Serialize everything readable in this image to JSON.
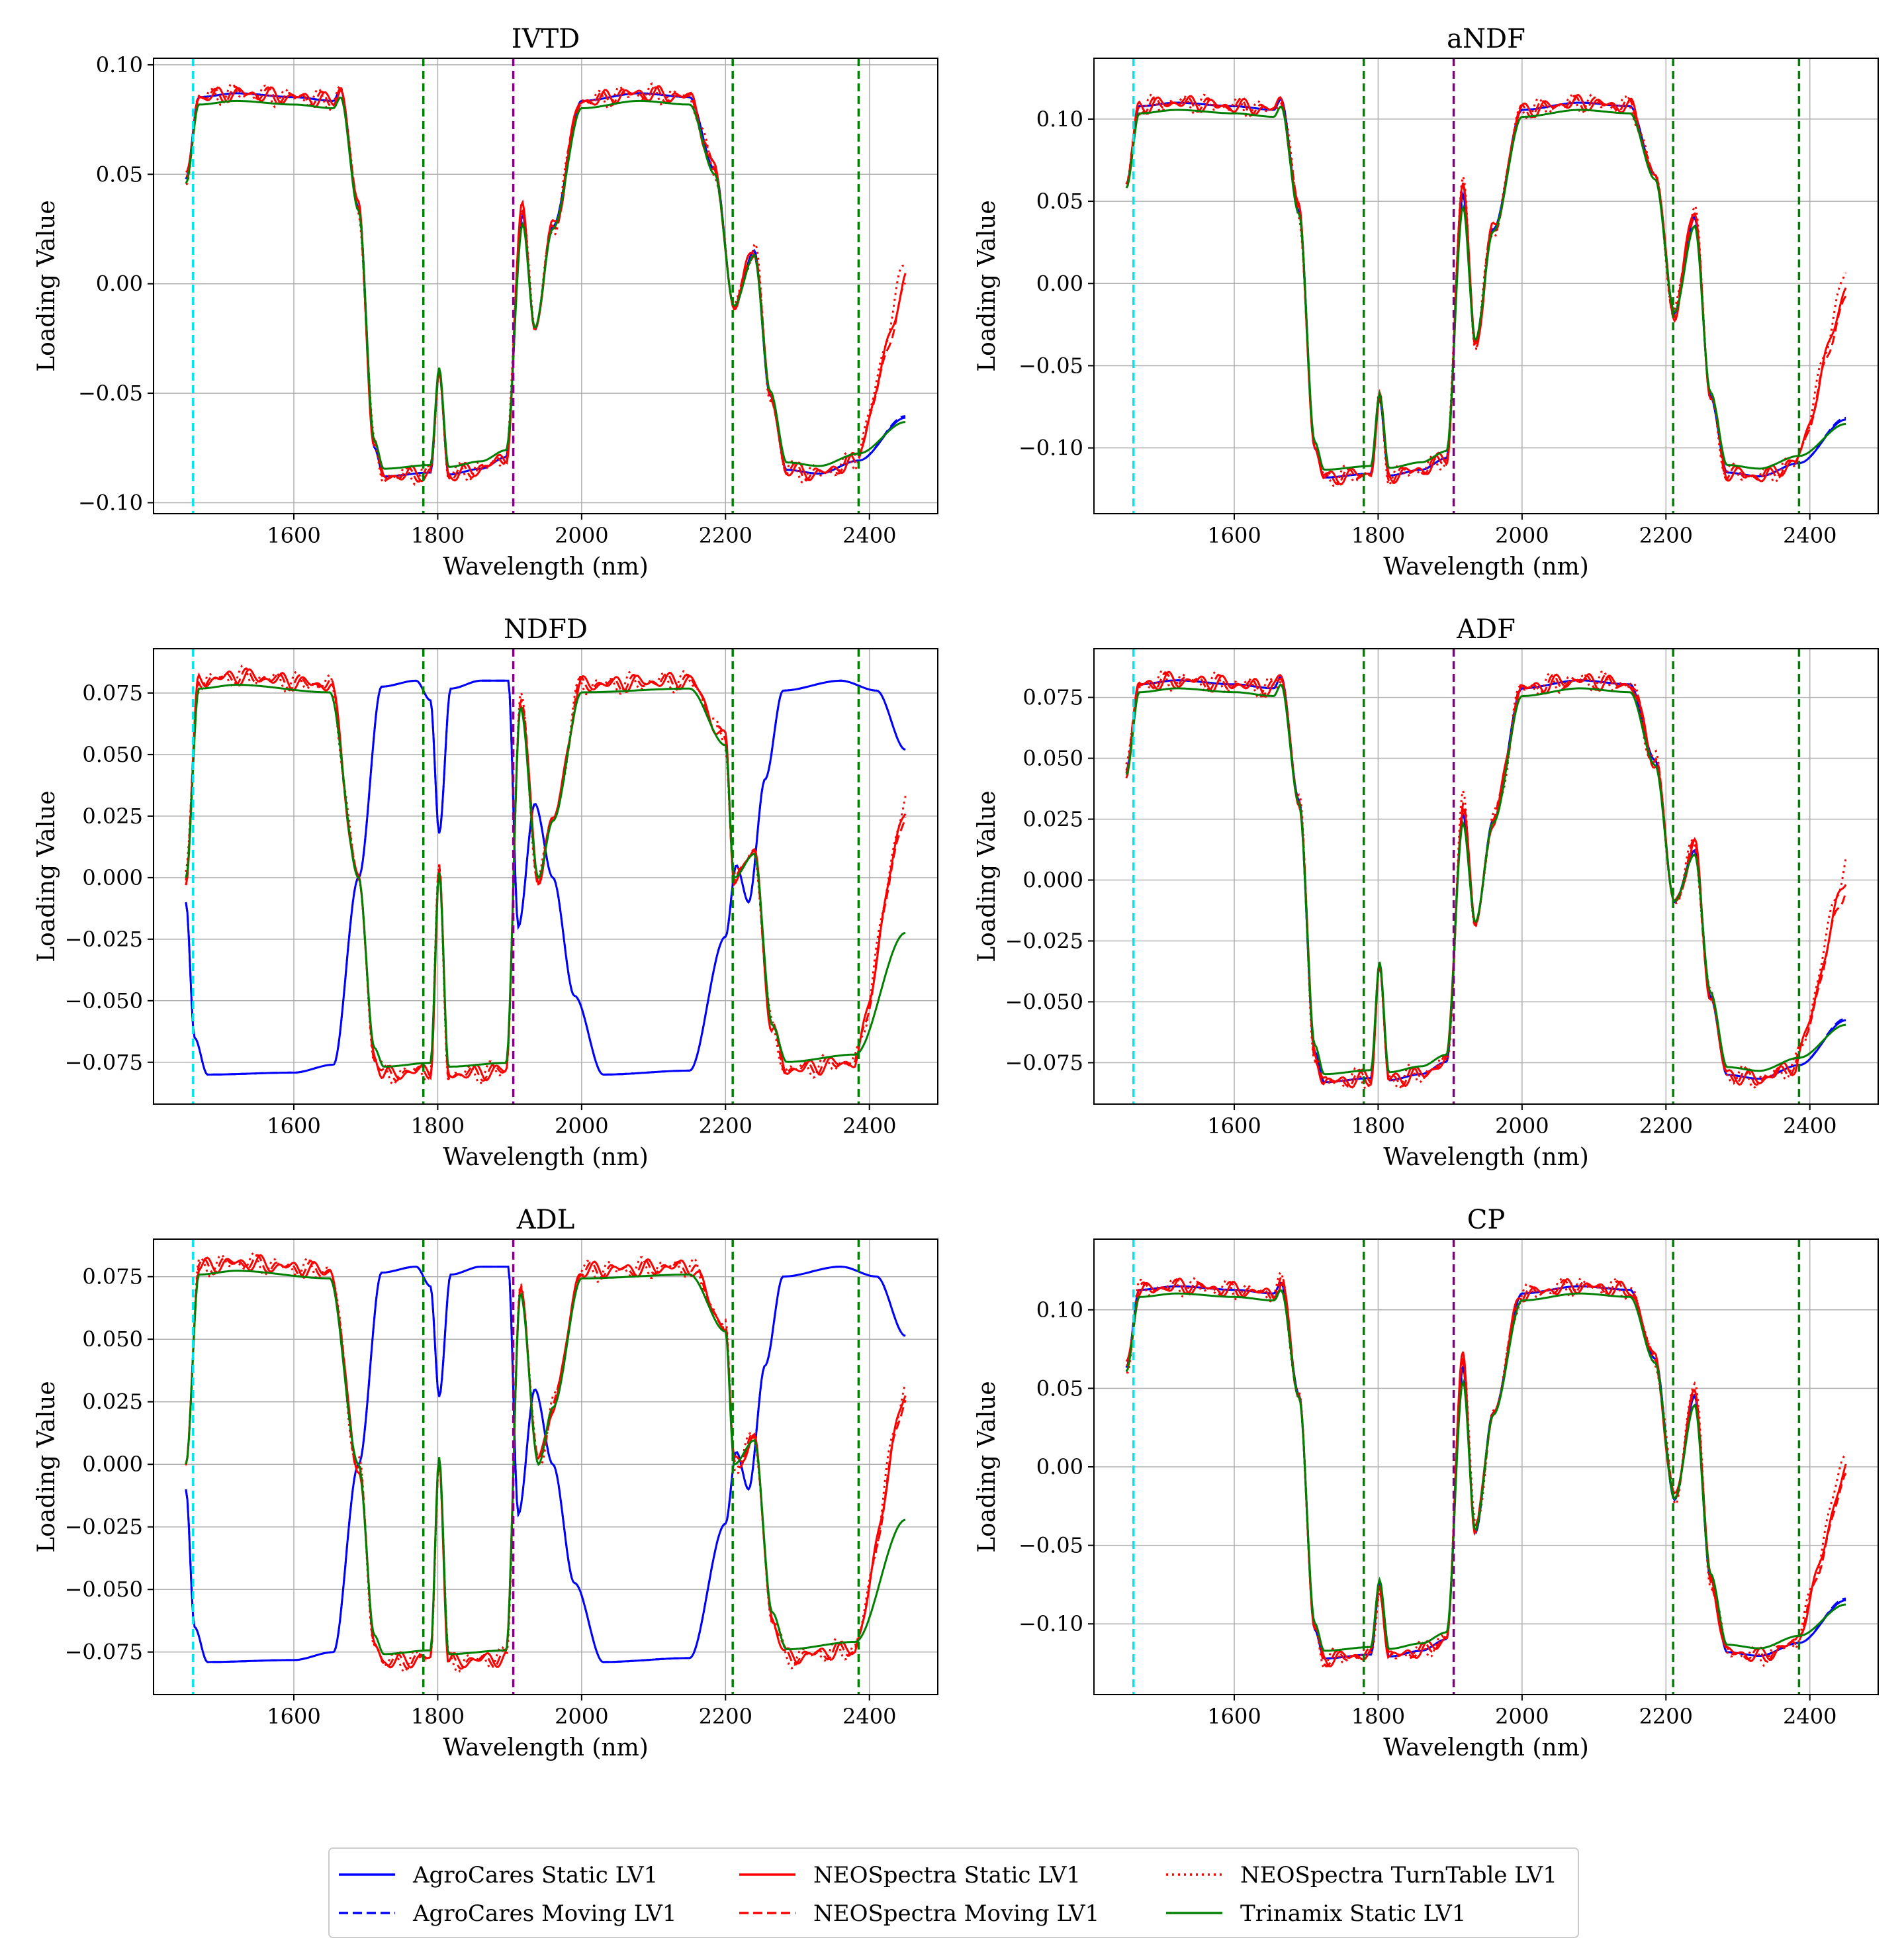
{
  "figure": {
    "legend": [
      {
        "name": "AgroCares Static LV1",
        "color": "#0000ff",
        "dash": "solid"
      },
      {
        "name": "AgroCares Moving LV1",
        "color": "#0000ff",
        "dash": "dashed"
      },
      {
        "name": "NEOSpectra Static LV1",
        "color": "#ff0000",
        "dash": "solid"
      },
      {
        "name": "NEOSpectra Moving LV1",
        "color": "#ff0000",
        "dash": "dashed"
      },
      {
        "name": "NEOSpectra TurnTable LV1",
        "color": "#ff0000",
        "dash": "dotted"
      },
      {
        "name": "Trinamix Static LV1",
        "color": "#008000",
        "dash": "solid"
      }
    ],
    "colors": {
      "agrocares": "#0000ff",
      "neospectra": "#ff0000",
      "trinamix": "#008000",
      "cyan_line": "#00e5ee",
      "green_line": "#008000",
      "purple_line": "#800080",
      "grid": "#b0b0b0"
    },
    "shared_axis": {
      "xlabel": "Wavelength (nm)",
      "ylabel": "Loading Value"
    }
  },
  "chart_data": [
    {
      "type": "line",
      "title": "IVTD",
      "xlabel": "Wavelength (nm)",
      "ylabel": "Loading Value",
      "xlim": [
        1405,
        2495
      ],
      "ylim": [
        -0.105,
        0.103
      ],
      "xticks": [
        1600,
        1800,
        2000,
        2200,
        2400
      ],
      "yticks": [
        -0.1,
        -0.05,
        0.0,
        0.05,
        0.1
      ],
      "ytick_labels": [
        "−0.10",
        "−0.05",
        "0.00",
        "0.05",
        "0.10"
      ],
      "vlines": [
        {
          "x": 1460,
          "color": "cyan"
        },
        {
          "x": 1780,
          "color": "green"
        },
        {
          "x": 1905,
          "color": "purple"
        },
        {
          "x": 2210,
          "color": "green"
        },
        {
          "x": 2385,
          "color": "green"
        }
      ],
      "pattern": "single",
      "params": {
        "A": 0.087,
        "B": -0.088,
        "C": -0.04,
        "D": -0.085,
        "E": 0.035,
        "F": 0.015
      }
    },
    {
      "type": "line",
      "title": "aNDF",
      "xlabel": "Wavelength (nm)",
      "ylabel": "Loading Value",
      "xlim": [
        1405,
        2495
      ],
      "ylim": [
        -0.14,
        0.137
      ],
      "xticks": [
        1600,
        1800,
        2000,
        2200,
        2400
      ],
      "yticks": [
        -0.1,
        -0.05,
        0.0,
        0.05,
        0.1
      ],
      "ytick_labels": [
        "−0.10",
        "−0.05",
        "0.00",
        "0.05",
        "0.10"
      ],
      "vlines": [
        {
          "x": 1460,
          "color": "cyan"
        },
        {
          "x": 1780,
          "color": "green"
        },
        {
          "x": 1905,
          "color": "purple"
        },
        {
          "x": 2210,
          "color": "green"
        },
        {
          "x": 2385,
          "color": "green"
        }
      ],
      "pattern": "single",
      "params": {
        "A": 0.11,
        "B": -0.118,
        "C": -0.07,
        "D": -0.115,
        "E": 0.06,
        "F": 0.04
      }
    },
    {
      "type": "line",
      "title": "NDFD",
      "xlabel": "Wavelength (nm)",
      "ylabel": "Loading Value",
      "xlim": [
        1405,
        2495
      ],
      "ylim": [
        -0.092,
        0.093
      ],
      "xticks": [
        1600,
        1800,
        2000,
        2200,
        2400
      ],
      "yticks": [
        -0.075,
        -0.05,
        -0.025,
        0.0,
        0.025,
        0.05,
        0.075
      ],
      "ytick_labels": [
        "−0.075",
        "−0.050",
        "−0.025",
        "0.000",
        "0.025",
        "0.050",
        "0.075"
      ],
      "vlines": [
        {
          "x": 1460,
          "color": "cyan"
        },
        {
          "x": 1780,
          "color": "green"
        },
        {
          "x": 1905,
          "color": "purple"
        },
        {
          "x": 2210,
          "color": "green"
        },
        {
          "x": 2385,
          "color": "green"
        }
      ],
      "pattern": "cross",
      "params": {
        "A": 0.08,
        "B": -0.08,
        "C": -0.02,
        "D": -0.078,
        "E": 0.02,
        "F": 0.01
      }
    },
    {
      "type": "line",
      "title": "ADF",
      "xlabel": "Wavelength (nm)",
      "ylabel": "Loading Value",
      "xlim": [
        1405,
        2495
      ],
      "ylim": [
        -0.092,
        0.095
      ],
      "xticks": [
        1600,
        1800,
        2000,
        2200,
        2400
      ],
      "yticks": [
        -0.075,
        -0.05,
        -0.025,
        0.0,
        0.025,
        0.05,
        0.075
      ],
      "ytick_labels": [
        "−0.075",
        "−0.050",
        "−0.025",
        "0.000",
        "0.025",
        "0.050",
        "0.075"
      ],
      "vlines": [
        {
          "x": 1460,
          "color": "cyan"
        },
        {
          "x": 1780,
          "color": "green"
        },
        {
          "x": 1905,
          "color": "purple"
        },
        {
          "x": 2210,
          "color": "green"
        },
        {
          "x": 2385,
          "color": "green"
        }
      ],
      "pattern": "single",
      "params": {
        "A": 0.082,
        "B": -0.083,
        "C": -0.035,
        "D": -0.08,
        "E": 0.03,
        "F": 0.012
      }
    },
    {
      "type": "line",
      "title": "ADL",
      "xlabel": "Wavelength (nm)",
      "ylabel": "Loading Value",
      "xlim": [
        1405,
        2495
      ],
      "ylim": [
        -0.092,
        0.09
      ],
      "xticks": [
        1600,
        1800,
        2000,
        2200,
        2400
      ],
      "yticks": [
        -0.075,
        -0.05,
        -0.025,
        0.0,
        0.025,
        0.05,
        0.075
      ],
      "ytick_labels": [
        "−0.075",
        "−0.050",
        "−0.025",
        "0.000",
        "0.025",
        "0.050",
        "0.075"
      ],
      "vlines": [
        {
          "x": 1460,
          "color": "cyan"
        },
        {
          "x": 1780,
          "color": "green"
        },
        {
          "x": 1905,
          "color": "purple"
        },
        {
          "x": 2210,
          "color": "green"
        },
        {
          "x": 2385,
          "color": "green"
        }
      ],
      "pattern": "cross",
      "params": {
        "A": 0.079,
        "B": -0.079,
        "C": -0.03,
        "D": -0.077,
        "E": 0.02,
        "F": 0.0
      }
    },
    {
      "type": "line",
      "title": "CP",
      "xlabel": "Wavelength (nm)",
      "ylabel": "Loading Value",
      "xlim": [
        1405,
        2495
      ],
      "ylim": [
        -0.145,
        0.145
      ],
      "xticks": [
        1600,
        1800,
        2000,
        2200,
        2400
      ],
      "yticks": [
        -0.1,
        -0.05,
        0.0,
        0.05,
        0.1
      ],
      "ytick_labels": [
        "−0.10",
        "−0.05",
        "0.00",
        "0.05",
        "0.10"
      ],
      "vlines": [
        {
          "x": 1460,
          "color": "cyan"
        },
        {
          "x": 1780,
          "color": "green"
        },
        {
          "x": 1905,
          "color": "purple"
        },
        {
          "x": 2210,
          "color": "green"
        },
        {
          "x": 2385,
          "color": "green"
        }
      ],
      "pattern": "single",
      "params": {
        "A": 0.115,
        "B": -0.122,
        "C": -0.075,
        "D": -0.118,
        "E": 0.07,
        "F": 0.045
      }
    }
  ]
}
